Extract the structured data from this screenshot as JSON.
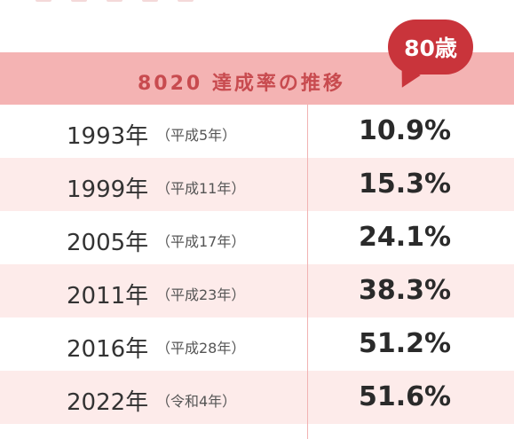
{
  "header": {
    "title": "8020 達成率の推移",
    "badge": "80歳"
  },
  "rows": [
    {
      "year": "1993年",
      "era": "（平成5年）",
      "rate": "10.9%"
    },
    {
      "year": "1999年",
      "era": "（平成11年）",
      "rate": "15.3%"
    },
    {
      "year": "2005年",
      "era": "（平成17年）",
      "rate": "24.1%"
    },
    {
      "year": "2011年",
      "era": "（平成23年）",
      "rate": "38.3%"
    },
    {
      "year": "2016年",
      "era": "（平成28年）",
      "rate": "51.2%"
    },
    {
      "year": "2022年",
      "era": "（令和4年）",
      "rate": "51.6%"
    }
  ],
  "colors": {
    "header_bg": "#f4b3b3",
    "header_text": "#c84b4f",
    "badge_bg": "#c9343b",
    "row_alt_bg": "#fdebea",
    "divider": "#f1b3b3"
  }
}
